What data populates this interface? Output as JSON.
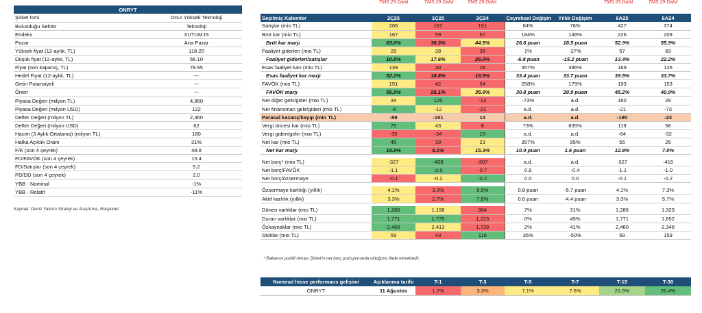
{
  "left_table": {
    "title": "ONRYT",
    "rows": [
      {
        "label": "Şirket İsmi",
        "value": "Onur Yüksek Teknoloji"
      },
      {
        "label": "Bulunduğu Sektör",
        "value": "Teknoloji"
      },
      {
        "label": "Endeks",
        "value": "XUTUM:IS"
      },
      {
        "label": "Pazar",
        "value": "Ana Pazar"
      },
      {
        "label": "Yüksek fiyat (12-aylık, TL)",
        "value": "118.20"
      },
      {
        "label": "Düşük fiyat (12-aylık, TL)",
        "value": "56.10"
      },
      {
        "label": "Fiyat (son kapanış, TL)",
        "value": "78.95"
      },
      {
        "label": "Hedef Fiyat (12-aylık, TL)",
        "value": "---"
      },
      {
        "label": "Getiri Potansiyeli",
        "value": "---"
      },
      {
        "label": "Öneri",
        "value": "---"
      },
      {
        "label": "Piyasa Değeri (milyon TL)",
        "value": "4,960"
      },
      {
        "label": "Piyasa Değeri (milyon USD)",
        "value": "122"
      },
      {
        "label": "Defter Değeri (milyon TL)",
        "value": "2,460"
      },
      {
        "label": "Defter Değeri (milyon USD)",
        "value": "62"
      },
      {
        "label": "Hacim (3 Aylık Ortalama) (milyon TL)",
        "value": "180"
      },
      {
        "label": "Halka Açıklık Oranı",
        "value": "31%"
      },
      {
        "label": "F/K (son 4 çeyrek)",
        "value": "48.8"
      },
      {
        "label": "FD/FAVÖK (son 4 çeyrek)",
        "value": "15.4"
      },
      {
        "label": "FD/Satışlar (son 4 çeyrek)",
        "value": "5.2"
      },
      {
        "label": "PD/DD (son 4 çeyrek)",
        "value": "2.0"
      },
      {
        "label": "YBB - Nominal",
        "value": "-1%"
      },
      {
        "label": "YBB - Relatif",
        "value": "-11%"
      }
    ],
    "source": "Kaynak: Deniz Yatırım Strateji ve Araştırma, Rasyonet"
  },
  "tms_label": "TMS 29 Dahil",
  "right_table": {
    "headers": [
      "Seçilmiş Kalemler",
      "2Ç25",
      "1Ç25",
      "2Ç24",
      "Çeyreksel Değişim",
      "Yıllık Değişim",
      "6A25",
      "6A24"
    ],
    "rows": [
      {
        "label": "Satışlar (mio TL)",
        "v": [
          "266",
          "162",
          "151",
          "64%",
          "76%",
          "427",
          "374"
        ],
        "c": [
          "y",
          "r",
          "r",
          "",
          "",
          "",
          ""
        ]
      },
      {
        "label": "Brüt kar (mio TL)",
        "v": [
          "167",
          "59",
          "67",
          "184%",
          "149%",
          "226",
          "209"
        ],
        "c": [
          "y",
          "r",
          "r",
          "",
          "",
          "",
          ""
        ]
      },
      {
        "label": "Brüt kar marjı",
        "v": [
          "63.0%",
          "36.3%",
          "44.5%",
          "26.6 puan",
          "18.5 puan",
          "52.9%",
          "55.9%"
        ],
        "c": [
          "g",
          "r",
          "y",
          "",
          "",
          "",
          ""
        ],
        "s": "ital"
      },
      {
        "label": "Faaliyet giderleri (mio TL)",
        "v": [
          "29",
          "28",
          "39",
          "1%",
          "-27%",
          "57",
          "83"
        ],
        "c": [
          "y",
          "y",
          "r",
          "",
          "",
          "",
          ""
        ]
      },
      {
        "label": "Faaliyet giderleri/satışlar",
        "v": [
          "10.8%",
          "17.6%",
          "26.0%",
          "-6.8 puan",
          "-15.2 puan",
          "13.4%",
          "22.2%"
        ],
        "c": [
          "g",
          "y",
          "r",
          "",
          "",
          "",
          ""
        ],
        "s": "ital"
      },
      {
        "label": "Esas faaliyet karı (mio TL)",
        "v": [
          "139",
          "30",
          "28",
          "357%",
          "396%",
          "169",
          "126"
        ],
        "c": [
          "y",
          "r",
          "r",
          "",
          "",
          "",
          ""
        ]
      },
      {
        "label": "Esas faaliyet kar marjı",
        "v": [
          "52.2%",
          "18.8%",
          "18.5%",
          "33.4 puan",
          "33.7 puan",
          "39.5%",
          "33.7%"
        ],
        "c": [
          "g",
          "r",
          "r",
          "",
          "",
          "",
          ""
        ],
        "s": "ital"
      },
      {
        "label": "FAVÖK (mio TL)",
        "v": [
          "151",
          "42",
          "54",
          "258%",
          "179%",
          "193",
          "153"
        ],
        "c": [
          "y",
          "r",
          "r",
          "",
          "",
          "",
          ""
        ]
      },
      {
        "label": "FAVÖK marjı",
        "v": [
          "56.9%",
          "26.1%",
          "35.9%",
          "30.8 puan",
          "20.9 puan",
          "45.2%",
          "40.9%"
        ],
        "c": [
          "g",
          "r",
          "y",
          "",
          "",
          "",
          ""
        ],
        "s": "ital"
      },
      {
        "label": "Net diğer gelir/gider (mio TL)",
        "v": [
          "34",
          "126",
          "-13",
          "-73%",
          "a.d.",
          "160",
          "28"
        ],
        "c": [
          "y",
          "g",
          "r",
          "",
          "",
          "",
          ""
        ]
      },
      {
        "label": "Net finansman gelir/gideri (mio TL)",
        "v": [
          "-9",
          "-12",
          "-21",
          "a.d.",
          "a.d.",
          "-21",
          "-73"
        ],
        "c": [
          "g",
          "y",
          "r",
          "",
          "",
          "",
          ""
        ]
      },
      {
        "label": "Parasal kazanç/kayıp (mio TL)",
        "v": [
          "-89",
          "-101",
          "14",
          "a.d.",
          "a.d.",
          "-190",
          "-23"
        ],
        "c": [
          "",
          "",
          "",
          "",
          "",
          "",
          ""
        ],
        "s": "hl"
      },
      {
        "label": "Vergi öncesi kar (mio TL)",
        "v": [
          "75",
          "43",
          "8",
          "73%",
          "835%",
          "119",
          "58"
        ],
        "c": [
          "g",
          "y",
          "r",
          "",
          "",
          "",
          ""
        ]
      },
      {
        "label": "Vergi gideri/geliri (mio TL)",
        "v": [
          "-30",
          "-34",
          "15",
          "a.d.",
          "a.d.",
          "-64",
          "-32"
        ],
        "c": [
          "r",
          "r",
          "g",
          "",
          "",
          "",
          ""
        ]
      },
      {
        "label": "Net kar (mio TL)",
        "v": [
          "45",
          "10",
          "23",
          "357%",
          "95%",
          "55",
          "26"
        ],
        "c": [
          "g",
          "r",
          "y",
          "",
          "",
          "",
          ""
        ]
      },
      {
        "label": "Net kar marjı",
        "v": [
          "16.9%",
          "6.1%",
          "15.3%",
          "10.9 puan",
          "1.6 puan",
          "12.8%",
          "7.0%"
        ],
        "c": [
          "g",
          "r",
          "y",
          "",
          "",
          "",
          ""
        ],
        "s": "ital"
      },
      {
        "gap": true
      },
      {
        "label": "Net borç* (mio TL)",
        "v": [
          "-327",
          "-408",
          "-307",
          "a.d.",
          "a.d.",
          "-327",
          "-415"
        ],
        "c": [
          "y",
          "g",
          "r",
          "",
          "",
          "",
          ""
        ]
      },
      {
        "label": "Net borç/FAVÖK",
        "v": [
          "-1.1",
          "-2.0",
          "-0.7",
          "0.9",
          "-0.4",
          "-1.1",
          "-1.0"
        ],
        "c": [
          "y",
          "g",
          "r",
          "",
          "",
          "",
          ""
        ]
      },
      {
        "label": "Net borç/özsermaye",
        "v": [
          "-0.1",
          "-0.2",
          "-0.2",
          "0.0",
          "0.0",
          "-0.1",
          "-0.2"
        ],
        "c": [
          "r",
          "y",
          "g",
          "",
          "",
          "",
          ""
        ]
      },
      {
        "gap": true
      },
      {
        "label": "Özsermaye karlılığı (yıllık)",
        "v": [
          "4.1%",
          "3.3%",
          "9.9%",
          "0.8 puan",
          "-5.7 puan",
          "4.1%",
          "7.3%"
        ],
        "c": [
          "y",
          "r",
          "g",
          "",
          "",
          "",
          ""
        ]
      },
      {
        "label": "Aktif karlılık (yıllık)",
        "v": [
          "3.3%",
          "2.7%",
          "7.8%",
          "0.6 puan",
          "-4.4 puan",
          "3.3%",
          "5.7%"
        ],
        "c": [
          "y",
          "r",
          "g",
          "",
          "",
          "",
          ""
        ]
      },
      {
        "gap": true
      },
      {
        "label": "Dönen varlıklar (mio TL)",
        "v": [
          "1,286",
          "1,198",
          "984",
          "7%",
          "31%",
          "1,286",
          "1,329"
        ],
        "c": [
          "g",
          "y",
          "r",
          "",
          "",
          "",
          ""
        ]
      },
      {
        "label": "Duran varlıklar (mio TL)",
        "v": [
          "1,771",
          "1,775",
          "1,223",
          "0%",
          "45%",
          "1,771",
          "1,652"
        ],
        "c": [
          "g",
          "g",
          "r",
          "",
          "",
          "",
          ""
        ]
      },
      {
        "label": "Özkaynaklar (mio TL)",
        "v": [
          "2,460",
          "2,413",
          "1,739",
          "2%",
          "41%",
          "2,460",
          "2,348"
        ],
        "c": [
          "g",
          "y",
          "r",
          "",
          "",
          "",
          ""
        ]
      },
      {
        "label": "Stoklar (mio TL)",
        "v": [
          "59",
          "43",
          "118",
          "36%",
          "-50%",
          "59",
          "159"
        ],
        "c": [
          "y",
          "r",
          "g",
          "",
          "",
          "",
          ""
        ]
      }
    ],
    "note": "* Rakamın pozitif olması Şirket'in net borç pozisyonunda olduğunu ifade etmektedir."
  },
  "perf_table": {
    "headers": [
      "Nominal hisse performans gelişimi",
      "Açıklanma tarihi",
      "T-1",
      "T-3",
      "T-5",
      "T-7",
      "T-15",
      "T-30"
    ],
    "row": {
      "label": "ONRYT",
      "date": "11 Ağustos",
      "v": [
        "1.2%",
        "3.3%",
        "7.1%",
        "7.6%",
        "21.5%",
        "26.4%"
      ],
      "c": [
        "r",
        "o",
        "y",
        "y",
        "lg",
        "g"
      ]
    }
  }
}
